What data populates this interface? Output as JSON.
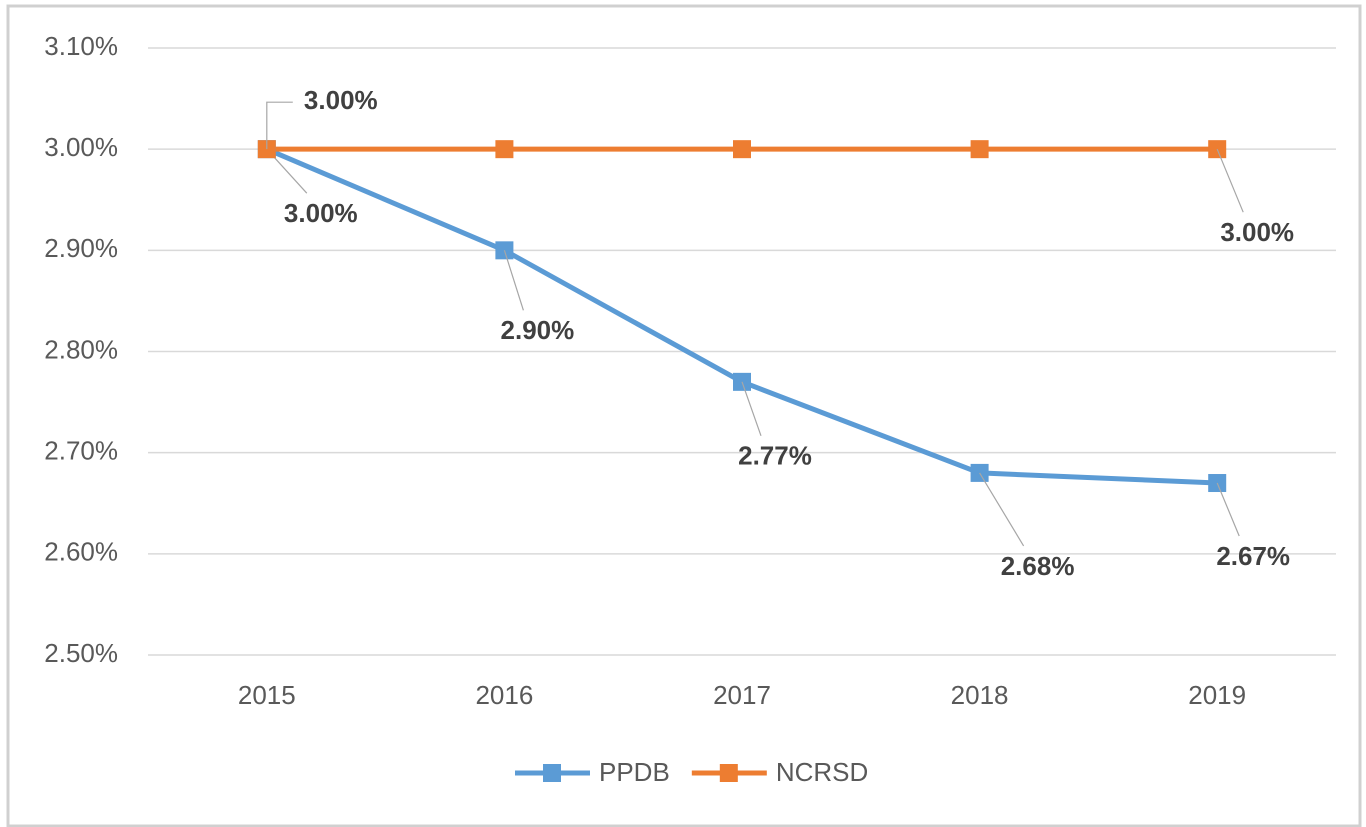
{
  "chart_data": {
    "type": "line",
    "categories": [
      "2015",
      "2016",
      "2017",
      "2018",
      "2019"
    ],
    "series": [
      {
        "name": "PPDB",
        "color": "#5b9bd5",
        "values": [
          3.0,
          2.9,
          2.77,
          2.68,
          2.67
        ],
        "value_labels": [
          "3.00%",
          "2.90%",
          "2.77%",
          "2.68%",
          "2.67%"
        ]
      },
      {
        "name": "NCRSD",
        "color": "#ed7d31",
        "values": [
          3.0,
          3.0,
          3.0,
          3.0,
          3.0
        ],
        "value_labels": [
          "3.00%",
          null,
          null,
          null,
          "3.00%"
        ]
      }
    ],
    "ylim": [
      2.5,
      3.1
    ],
    "yticks": [
      {
        "value": 2.5,
        "label": "2.50%"
      },
      {
        "value": 2.6,
        "label": "2.60%"
      },
      {
        "value": 2.7,
        "label": "2.70%"
      },
      {
        "value": 2.8,
        "label": "2.80%"
      },
      {
        "value": 2.9,
        "label": "2.90%"
      },
      {
        "value": 3.0,
        "label": "3.00%"
      },
      {
        "value": 3.1,
        "label": "3.10%"
      }
    ],
    "grid": true,
    "legend": "bottom"
  }
}
